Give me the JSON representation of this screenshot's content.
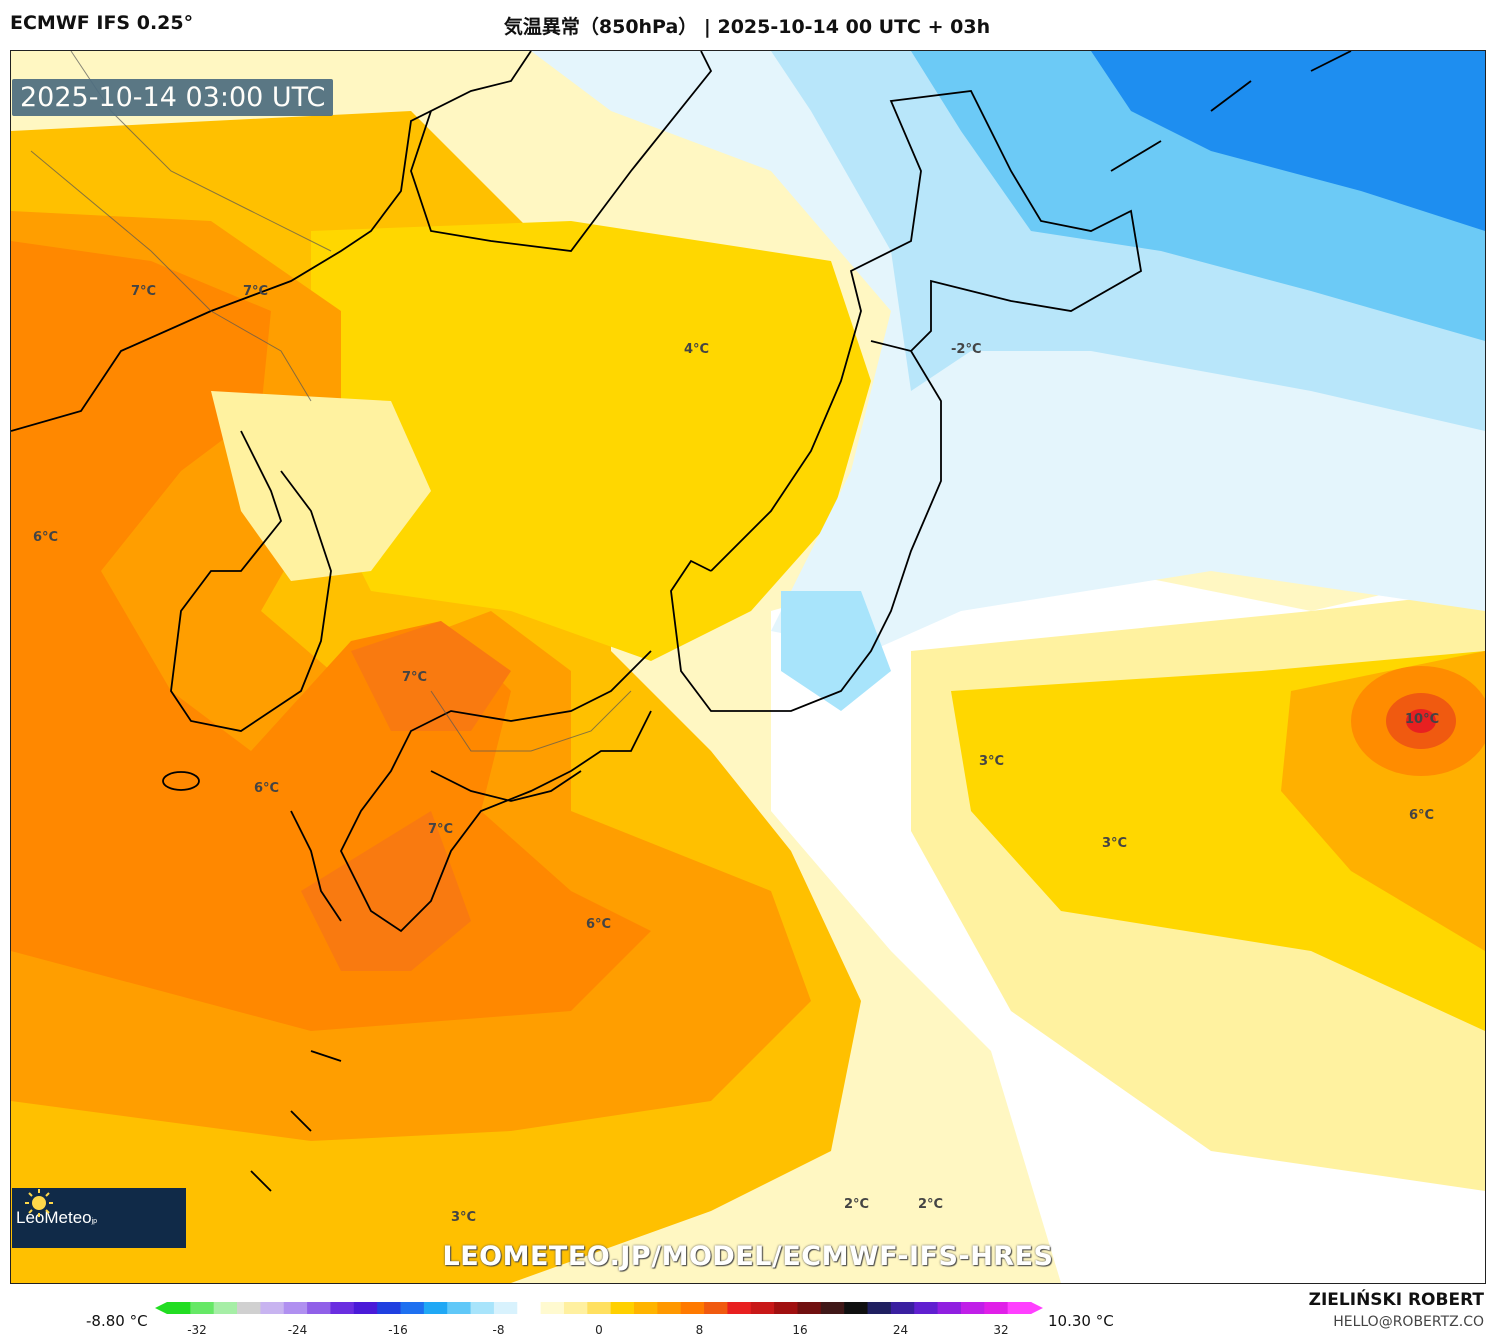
{
  "header": {
    "model": "ECMWF IFS 0.25°",
    "title": "気温異常（850hPa） | 2025-10-14 00 UTC + 03h"
  },
  "map": {
    "timestamp": "2025-10-14 03:00 UTC",
    "website": "LEOMETEO.JP/MODEL/ECMWF-IFS-HRES",
    "logo_text": "LeoMeteo",
    "logo_suffix": "jp",
    "labels": {
      "korea_n1": "7°C",
      "korea_n2": "7°C",
      "manchuria": "4°C",
      "hokkaido_e": "-2°C",
      "china": "6°C",
      "east_china_sea_n": "7°C",
      "east_china_sea": "6°C",
      "kyushu": "7°C",
      "south_sea": "6°C",
      "pacific_a": "3°C",
      "pacific_b": "3°C",
      "typhoon": "10°C",
      "typhoon_s": "6°C",
      "south_left": "3°C",
      "south_mid1": "2°C",
      "south_mid2": "2°C"
    }
  },
  "colorbar": {
    "min_label": "-8.80 °C",
    "max_label": "10.30 °C",
    "ticks": [
      "-32",
      "-24",
      "-16",
      "-8",
      "0",
      "8",
      "16",
      "24",
      "32"
    ],
    "colors": [
      "#22dd22",
      "#66e866",
      "#a6eea6",
      "#d0d0d0",
      "#c8b4f0",
      "#b090f0",
      "#9060e8",
      "#6a2ee0",
      "#4a1ad8",
      "#2040e0",
      "#1e70f0",
      "#20a8f5",
      "#60c8f8",
      "#a8e4fb",
      "#d8f2fd",
      "#ffffff",
      "#fffad0",
      "#fff0a0",
      "#ffe060",
      "#ffd000",
      "#ffb400",
      "#ff9800",
      "#ff7a00",
      "#f05a10",
      "#e82020",
      "#c81818",
      "#a01010",
      "#701010",
      "#401818",
      "#101010",
      "#202060",
      "#3a20a0",
      "#6020d0",
      "#9020e0",
      "#c020e8",
      "#e020e8",
      "#ff40ff"
    ]
  },
  "credits": {
    "author": "ZIELIŃSKI ROBERT",
    "email": "HELLO@ROBERTZ.CO"
  }
}
